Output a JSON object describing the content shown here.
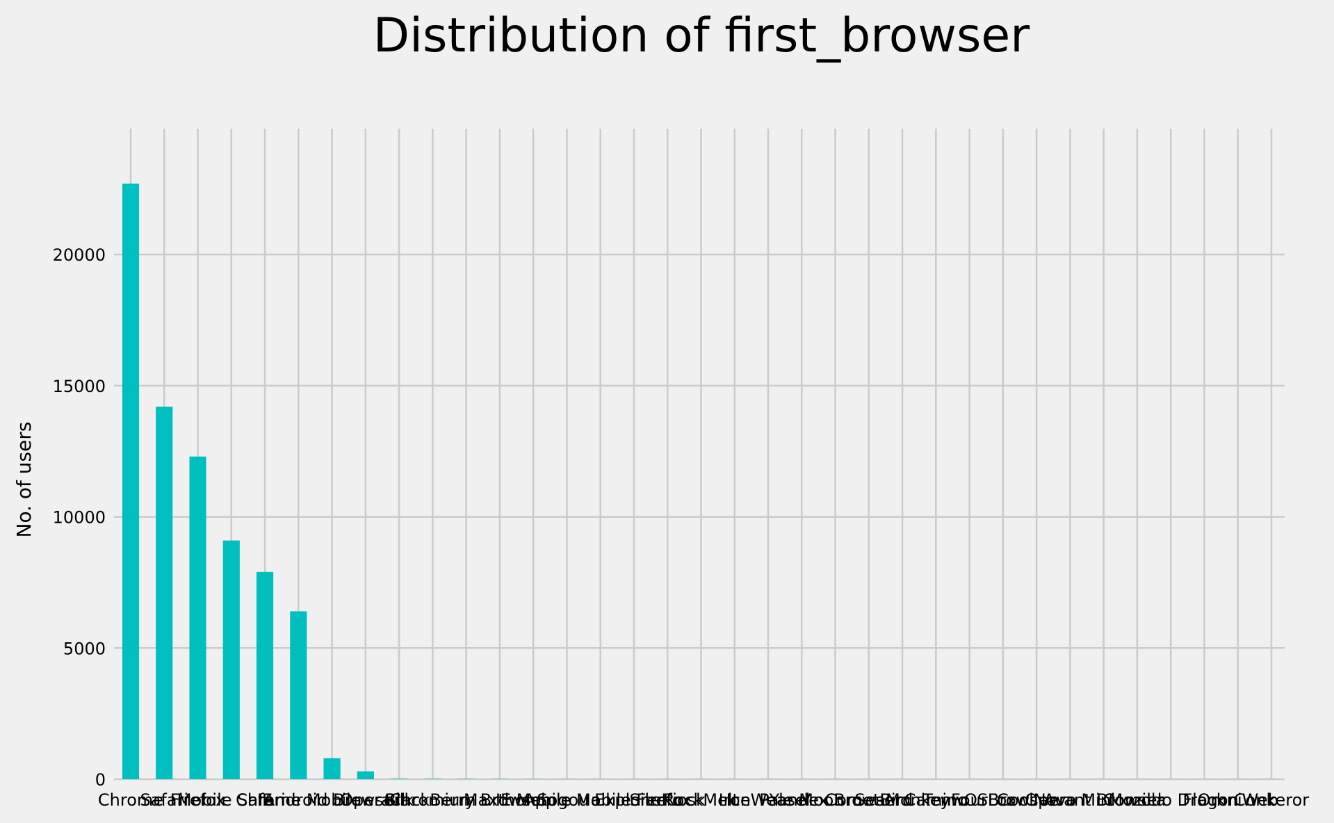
{
  "chart_data": {
    "type": "bar",
    "title": "Distribution of first_browser",
    "xlabel": "",
    "ylabel": "No. of users",
    "ylim": [
      0,
      24800
    ],
    "yticks": [
      0,
      5000,
      10000,
      15000,
      20000
    ],
    "grid": true,
    "legend": "none",
    "bar_color": "#00bfbf",
    "background_color": "#f0f0f0",
    "grid_color": "#cbcbcb",
    "categories": [
      "Chrome",
      "Safari",
      "Firefox",
      "Mobile Safari",
      "IE",
      "Chrome Mobile",
      "Android Browser",
      "Opera",
      "Silk",
      "Chromium",
      "BlackBerry Browser",
      "Maxthon",
      "IE Mobile",
      "Apple Mail",
      "Sogou Explorer",
      "Mobile Firefox",
      "SiteKiosk",
      "RockMelt",
      "Iron",
      "IceWeasel",
      "Pale Moon",
      "Yandex.Browser",
      "CometBird",
      "SeaMonkey",
      "Camino",
      "TenFourFox",
      "wOSBrowser",
      "CoolNovo",
      "Opera Mini",
      "Avant Browser",
      "Mozilla",
      "Comodo Dragon",
      "Flock",
      "OmniWeb",
      "Conkeror"
    ],
    "tick_labels": [
      "Chrome",
      "Safari",
      "Firefox",
      "Mobile Safari",
      "IE",
      "Chrome Mobile",
      "Android Browser",
      "Opera",
      "Silk",
      "Chromium",
      "BlackBerry Browser",
      "Maxthon",
      "IE Mobile",
      "Apple Mail",
      "Sogou Explorer",
      "Mobile Firefox",
      "SiteKiosk",
      "RockMelt",
      "Iron",
      "IceWeasel",
      "Pale Moon",
      "Yandex.Browser",
      "CometBird",
      "SeaMonkey",
      "Camino",
      "TenFourFox",
      "wOSBrowser",
      "CoolNovo",
      "Opera Mini",
      "Avant Browser",
      "Mozilla",
      "Comodo Dragon",
      "Flock",
      "OmniWeb",
      "Conkeror"
    ],
    "values": [
      22700,
      14200,
      12300,
      9100,
      7900,
      6400,
      800,
      300,
      20,
      15,
      12,
      10,
      8,
      6,
      5,
      4,
      3,
      3,
      2,
      2,
      2,
      2,
      1,
      1,
      1,
      1,
      1,
      1,
      1,
      1,
      1,
      1,
      1,
      1,
      1
    ]
  }
}
